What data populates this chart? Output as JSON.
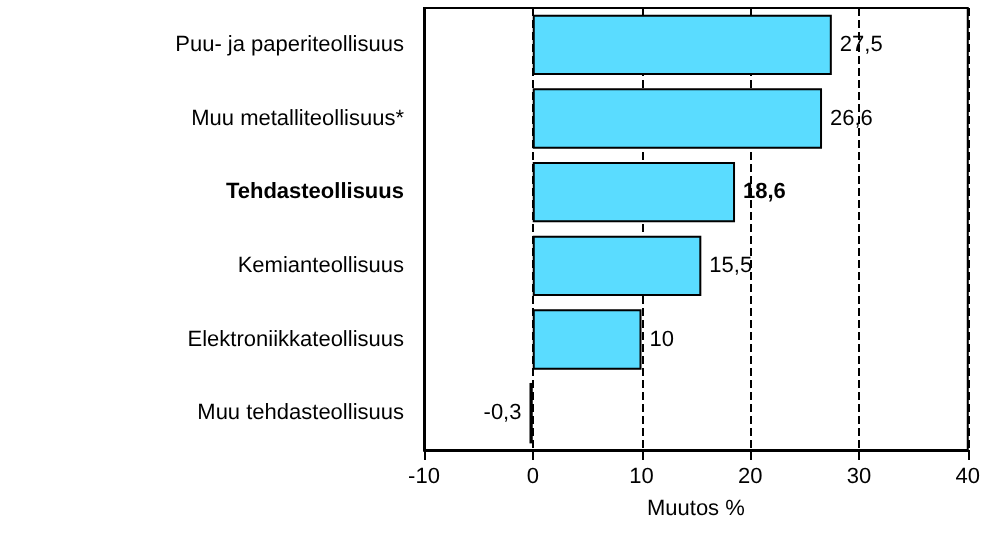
{
  "chart_data": {
    "type": "bar",
    "orientation": "horizontal",
    "xlabel": "Muutos %",
    "categories": [
      "Puu- ja paperiteollisuus",
      "Muu metalliteollisuus*",
      "Tehdasteollisuus",
      "Kemianteollisuus",
      "Elektroniikkateollisuus",
      "Muu tehdasteollisuus"
    ],
    "values": [
      27.5,
      26.6,
      18.6,
      15.5,
      10,
      -0.3
    ],
    "value_labels": [
      "27,5",
      "26,6",
      "18,6",
      "15,5",
      "10",
      "-0,3"
    ],
    "color": "#5adcff",
    "xlim": [
      -10,
      40
    ],
    "xticks": [
      -10,
      0,
      10,
      20,
      30,
      40
    ],
    "grid": "x"
  }
}
